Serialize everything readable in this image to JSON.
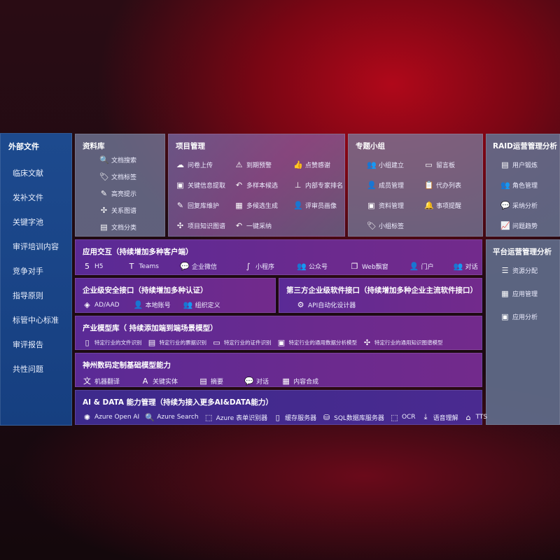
{
  "sidebar": {
    "title": "外部文件",
    "items": [
      "临床文献",
      "发补文件",
      "关键字池",
      "审评培训内容",
      "竞争对手",
      "指导原则",
      "标管中心标准",
      "审评报告",
      "共性问题"
    ]
  },
  "library": {
    "title": "资料库",
    "items": [
      {
        "icon": "document-search-icon",
        "g": "🔍",
        "label": "文档搜索"
      },
      {
        "icon": "tag-icon",
        "g": "🏷",
        "label": "文档标签"
      },
      {
        "icon": "pen-icon",
        "g": "✎",
        "label": "高亮提示"
      },
      {
        "icon": "graph-icon",
        "g": "✣",
        "label": "关系图谱"
      },
      {
        "icon": "document-copy-icon",
        "g": "▤",
        "label": "文档分类"
      }
    ]
  },
  "project": {
    "title": "项目管理",
    "items": [
      {
        "icon": "cloud-upload-icon",
        "g": "☁",
        "label": "问卷上传"
      },
      {
        "icon": "alarm-icon",
        "g": "⚠",
        "label": "到期预警"
      },
      {
        "icon": "thumbs-up-icon",
        "g": "👍",
        "label": "点赞感谢"
      },
      {
        "icon": "window-icon",
        "g": "▣",
        "label": "关键信息提取"
      },
      {
        "icon": "reply-icon",
        "g": "↶",
        "label": "多样本候选"
      },
      {
        "icon": "ranking-icon",
        "g": "⊥",
        "label": "内部专家排名"
      },
      {
        "icon": "edit-icon",
        "g": "✎",
        "label": "回复库维护"
      },
      {
        "icon": "puzzle-icon",
        "g": "▦",
        "label": "多候选生成"
      },
      {
        "icon": "user-icon",
        "g": "👤",
        "label": "评审员画像"
      },
      {
        "icon": "graph-icon",
        "g": "✣",
        "label": "项目知识图谱"
      },
      {
        "icon": "reply-icon",
        "g": "↶",
        "label": "一键采纳"
      }
    ]
  },
  "group": {
    "title": "专题小组",
    "items": [
      {
        "icon": "users-icon",
        "g": "👥",
        "label": "小组建立"
      },
      {
        "icon": "bbs-icon",
        "g": "▭",
        "label": "留言板"
      },
      {
        "icon": "add-user-icon",
        "g": "👤",
        "label": "成员管理"
      },
      {
        "icon": "clipboard-icon",
        "g": "📋",
        "label": "代办列表"
      },
      {
        "icon": "folder-icon",
        "g": "▣",
        "label": "资料管理"
      },
      {
        "icon": "bell-icon",
        "g": "🔔",
        "label": "事项提醒"
      },
      {
        "icon": "tag-icon",
        "g": "🏷",
        "label": "小组标签"
      }
    ]
  },
  "raid": {
    "title": "RAID运营管理分析",
    "items": [
      {
        "icon": "id-card-icon",
        "g": "▤",
        "label": "用户锻炼"
      },
      {
        "icon": "users-icon",
        "g": "👥",
        "label": "角色管理"
      },
      {
        "icon": "qa-icon",
        "g": "💬",
        "label": "采纳分析"
      },
      {
        "icon": "trend-icon",
        "g": "📈",
        "label": "问题趋势"
      }
    ]
  },
  "platform": {
    "title": "平台运营管理分析",
    "items": [
      {
        "icon": "checklist-icon",
        "g": "☰",
        "label": "资源分配"
      },
      {
        "icon": "apps-icon",
        "g": "▦",
        "label": "应用管理"
      },
      {
        "icon": "chart-icon",
        "g": "▣",
        "label": "应用分析"
      }
    ]
  },
  "app": {
    "title": "应用交互（持续增加多种客户端）",
    "items": [
      {
        "icon": "html5-icon",
        "g": "5",
        "label": "H5"
      },
      {
        "icon": "teams-icon",
        "g": "T",
        "label": "Teams"
      },
      {
        "icon": "wecom-icon",
        "g": "💬",
        "label": "企业微信"
      },
      {
        "icon": "mini-program-icon",
        "g": "∫",
        "label": "小程序"
      },
      {
        "icon": "users-icon",
        "g": "👥",
        "label": "公众号"
      },
      {
        "icon": "window-icon",
        "g": "❐",
        "label": "Web飘窗"
      },
      {
        "icon": "portal-icon",
        "g": "👤",
        "label": "门户"
      },
      {
        "icon": "chat-icon",
        "g": "👥",
        "label": "对话"
      }
    ]
  },
  "security": {
    "title": "企业级安全接口（持续增加多种认证）",
    "items": [
      {
        "icon": "aad-icon",
        "g": "◈",
        "label": "AD/AAD"
      },
      {
        "icon": "local-account-icon",
        "g": "👤",
        "label": "本地账号"
      },
      {
        "icon": "org-icon",
        "g": "👥",
        "label": "组织定义"
      }
    ]
  },
  "third": {
    "title": "第三方企业级软件接口（持续增加多种企业主流软件接口）",
    "items": [
      {
        "icon": "gear-icon",
        "g": "⚙",
        "label": "API自动化设计器"
      }
    ]
  },
  "industry": {
    "title": "产业模型库（ 持续添加端到端场景模型）",
    "items": [
      {
        "icon": "file-icon",
        "g": "▯",
        "label": "特定行业的文件识别"
      },
      {
        "icon": "receipt-icon",
        "g": "▤",
        "label": "特定行业的票据识别"
      },
      {
        "icon": "id-card-icon",
        "g": "▭",
        "label": "特定行业的证件识别"
      },
      {
        "icon": "image-icon",
        "g": "▣",
        "label": "特定行业的通用数据分析模型"
      },
      {
        "icon": "graph-icon",
        "g": "✣",
        "label": "特定行业的通用知识图谱模型"
      }
    ]
  },
  "base": {
    "title": "神州数码定制基础模型能力",
    "items": [
      {
        "icon": "translate-icon",
        "g": "文",
        "label": "机器翻译"
      },
      {
        "icon": "entity-icon",
        "g": "A",
        "label": "关键实体"
      },
      {
        "icon": "summary-icon",
        "g": "▤",
        "label": "摘要"
      },
      {
        "icon": "chat-icon",
        "g": "💬",
        "label": "对话"
      },
      {
        "icon": "compose-icon",
        "g": "▦",
        "label": "内容合成"
      }
    ]
  },
  "ai": {
    "title": "AI & DATA 能力管理（持续为接入更多AI&DATA能力）",
    "items": [
      {
        "icon": "openai-icon",
        "g": "✺",
        "label": "Azure Open AI"
      },
      {
        "icon": "search-icon",
        "g": "🔍",
        "label": "Azure Search"
      },
      {
        "icon": "form-recognizer-icon",
        "g": "⬚",
        "label": "Azure 表单识别器"
      },
      {
        "icon": "cache-server-icon",
        "g": "▯",
        "label": "缓存服务器"
      },
      {
        "icon": "sql-icon",
        "g": "⛁",
        "label": "SQL数据库服务器"
      },
      {
        "icon": "ocr-icon",
        "g": "⬚",
        "label": "OCR"
      },
      {
        "icon": "speech-icon",
        "g": "⤓",
        "label": "语音理解"
      },
      {
        "icon": "tts-icon",
        "g": "⌂",
        "label": "TTS"
      }
    ]
  }
}
